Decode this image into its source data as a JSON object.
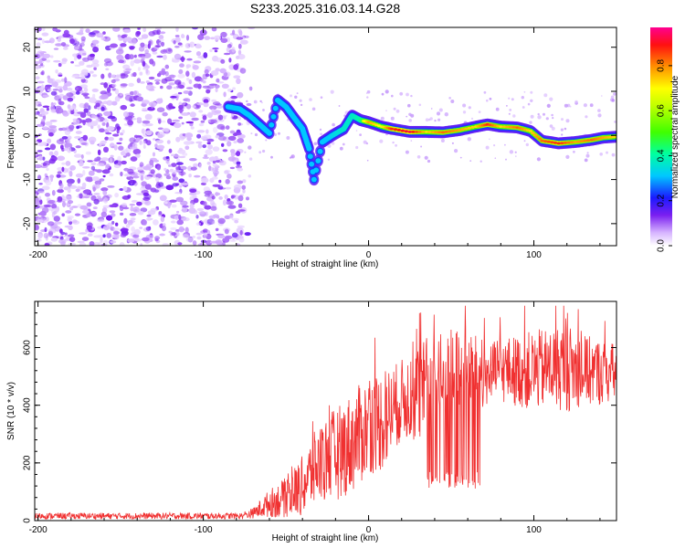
{
  "title": "S233.2025.316.03.14.G28",
  "colors": {
    "snr_line": "#f03030",
    "noise_purple": "#7a1ff0",
    "frame": "#000000",
    "colormap": [
      "#ffffff",
      "#d6b3ff",
      "#7a1ff0",
      "#1a1aff",
      "#00c8ff",
      "#00ff80",
      "#80ff00",
      "#ffff00",
      "#ff8000",
      "#ff0000",
      "#ff0090"
    ]
  },
  "chart_data": [
    {
      "type": "heatmap",
      "name": "spectrogram",
      "xlabel": "Height of straight line (km)",
      "ylabel": "Frequency (Hz)",
      "xlim": [
        -202,
        150
      ],
      "ylim": [
        -25,
        24.5
      ],
      "xticks": [
        -200,
        -100,
        0,
        100
      ],
      "xtick_labels": [
        "-200",
        "-100",
        "0",
        "100"
      ],
      "yticks": [
        -20,
        -10,
        0,
        10,
        20
      ],
      "ytick_labels": [
        "-20",
        "-10",
        "0",
        "10",
        "20"
      ],
      "noise_region": {
        "x_from": -202,
        "x_to": -75,
        "amplitude": "low (0.0-0.15)"
      },
      "ridge": [
        {
          "x": -85,
          "y": 6.5,
          "amp": 0.3
        },
        {
          "x": -78,
          "y": 6.0,
          "amp": 0.35
        },
        {
          "x": -72,
          "y": 4.5,
          "amp": 0.4
        },
        {
          "x": -66,
          "y": 2.5,
          "amp": 0.3
        },
        {
          "x": -60,
          "y": 0.5,
          "amp": 0.25
        },
        {
          "x": -55,
          "y": 8.0,
          "amp": 0.3
        },
        {
          "x": -50,
          "y": 6.5,
          "amp": 0.35
        },
        {
          "x": -45,
          "y": 4.0,
          "amp": 0.3
        },
        {
          "x": -40,
          "y": 1.5,
          "amp": 0.25
        },
        {
          "x": -36,
          "y": -3.0,
          "amp": 0.3
        },
        {
          "x": -33,
          "y": -10.0,
          "amp": 0.35
        },
        {
          "x": -28,
          "y": -1.5,
          "amp": 0.35
        },
        {
          "x": -22,
          "y": 0.0,
          "amp": 0.45
        },
        {
          "x": -15,
          "y": 1.5,
          "amp": 0.5
        },
        {
          "x": -10,
          "y": 4.5,
          "amp": 0.5
        },
        {
          "x": -5,
          "y": 3.5,
          "amp": 0.55
        },
        {
          "x": 0,
          "y": 3.0,
          "amp": 0.75
        },
        {
          "x": 8,
          "y": 2.0,
          "amp": 0.65
        },
        {
          "x": 14,
          "y": 1.5,
          "amp": 0.85
        },
        {
          "x": 25,
          "y": 0.8,
          "amp": 0.9
        },
        {
          "x": 35,
          "y": 0.8,
          "amp": 0.7
        },
        {
          "x": 45,
          "y": 0.7,
          "amp": 0.8
        },
        {
          "x": 55,
          "y": 1.2,
          "amp": 0.75
        },
        {
          "x": 65,
          "y": 2.0,
          "amp": 0.7
        },
        {
          "x": 72,
          "y": 2.5,
          "amp": 0.85
        },
        {
          "x": 80,
          "y": 2.0,
          "amp": 0.7
        },
        {
          "x": 90,
          "y": 1.8,
          "amp": 0.8
        },
        {
          "x": 98,
          "y": 1.0,
          "amp": 0.7
        },
        {
          "x": 105,
          "y": -1.2,
          "amp": 0.8
        },
        {
          "x": 115,
          "y": -1.8,
          "amp": 0.85
        },
        {
          "x": 125,
          "y": -1.5,
          "amp": 0.75
        },
        {
          "x": 135,
          "y": -1.0,
          "amp": 0.8
        },
        {
          "x": 142,
          "y": -0.5,
          "amp": 0.75
        },
        {
          "x": 150,
          "y": -0.3,
          "amp": 0.7
        }
      ]
    },
    {
      "type": "colorbar",
      "name": "colorbar",
      "label": "Normalized spectral amplitude",
      "range": [
        0.0,
        0.97
      ],
      "ticks": [
        0.0,
        0.2,
        0.4,
        0.6,
        0.8
      ],
      "tick_labels": [
        "0.0",
        "0.2",
        "0.4",
        "0.6",
        "0.8"
      ]
    },
    {
      "type": "line",
      "name": "snr",
      "xlabel": "Height of straight line (km)",
      "ylabel": "SNR (10 * v/v)",
      "xlim": [
        -202,
        150
      ],
      "ylim": [
        0,
        760
      ],
      "xticks": [
        -200,
        -100,
        0,
        100
      ],
      "xtick_labels": [
        "-200",
        "-100",
        "0",
        "100"
      ],
      "yticks": [
        0,
        200,
        400,
        600
      ],
      "ytick_labels": [
        "0",
        "200",
        "400",
        "600"
      ],
      "envelope": [
        {
          "x": -202,
          "base": 15,
          "spread": 15
        },
        {
          "x": -80,
          "base": 15,
          "spread": 15
        },
        {
          "x": -70,
          "base": 25,
          "spread": 25
        },
        {
          "x": -60,
          "base": 60,
          "spread": 70
        },
        {
          "x": -50,
          "base": 80,
          "spread": 100
        },
        {
          "x": -40,
          "base": 120,
          "spread": 150
        },
        {
          "x": -30,
          "base": 200,
          "spread": 200
        },
        {
          "x": -20,
          "base": 230,
          "spread": 230
        },
        {
          "x": -10,
          "base": 270,
          "spread": 250
        },
        {
          "x": 0,
          "base": 330,
          "spread": 250
        },
        {
          "x": 10,
          "base": 350,
          "spread": 250
        },
        {
          "x": 20,
          "base": 420,
          "spread": 200
        },
        {
          "x": 30,
          "base": 440,
          "spread": 250
        },
        {
          "x": 40,
          "base": 450,
          "spread": 300
        },
        {
          "x": 50,
          "base": 460,
          "spread": 300
        },
        {
          "x": 60,
          "base": 470,
          "spread": 300
        },
        {
          "x": 70,
          "base": 500,
          "spread": 150
        },
        {
          "x": 80,
          "base": 520,
          "spread": 160
        },
        {
          "x": 90,
          "base": 520,
          "spread": 180
        },
        {
          "x": 100,
          "base": 520,
          "spread": 200
        },
        {
          "x": 110,
          "base": 530,
          "spread": 200
        },
        {
          "x": 120,
          "base": 530,
          "spread": 220
        },
        {
          "x": 130,
          "base": 520,
          "spread": 180
        },
        {
          "x": 150,
          "base": 510,
          "spread": 150
        }
      ]
    }
  ]
}
